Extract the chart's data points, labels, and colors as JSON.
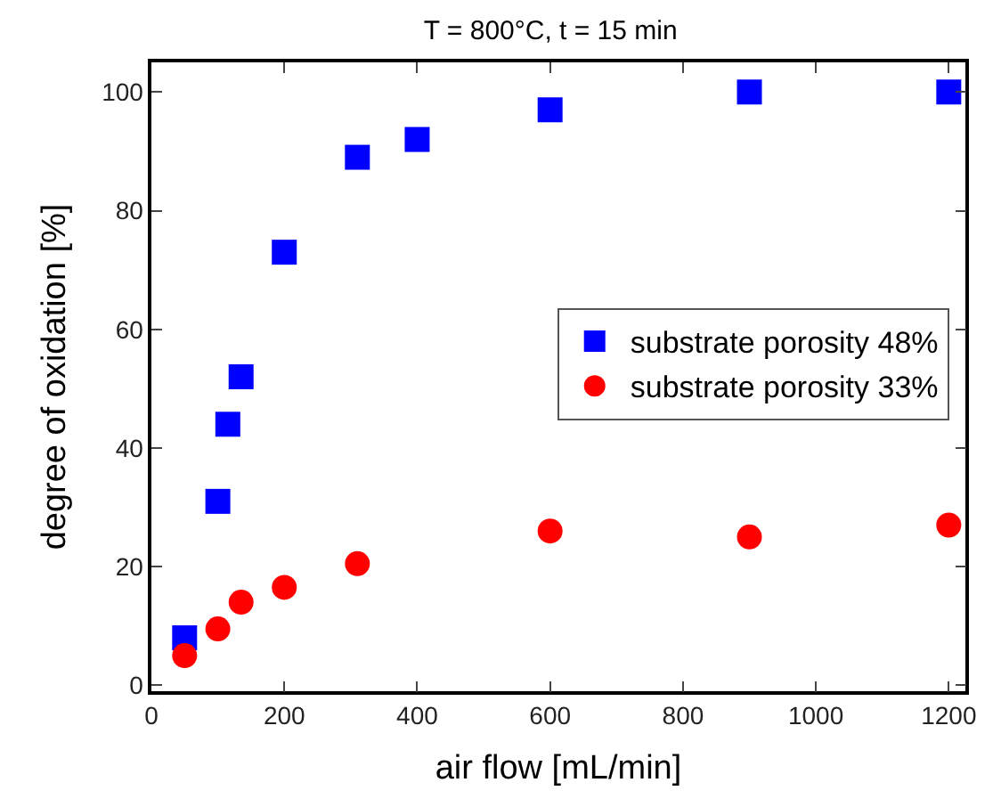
{
  "chart_data": {
    "type": "scatter",
    "title": "T = 800°C, t = 15 min",
    "xlabel": "air flow [mL/min]",
    "ylabel": "degree of oxidation [%]",
    "xlim": [
      0,
      1225
    ],
    "xticks": [
      0,
      200,
      400,
      600,
      800,
      1000,
      1200
    ],
    "ylim": [
      -1,
      105
    ],
    "yticks": [
      0,
      20,
      40,
      60,
      80,
      100
    ],
    "legend": "right",
    "series": [
      {
        "name": "substrate porosity 48%",
        "color": "#0000ff",
        "marker": "square",
        "x": [
          50,
          100,
          115,
          135,
          200,
          310,
          400,
          600,
          900,
          1200
        ],
        "values": [
          8,
          31,
          44,
          52,
          73,
          89,
          92,
          97,
          100,
          100
        ]
      },
      {
        "name": "substrate porosity 33%",
        "color": "#ff0000",
        "marker": "circle",
        "x": [
          50,
          100,
          135,
          200,
          310,
          600,
          900,
          1200
        ],
        "values": [
          5,
          9.5,
          14,
          16.5,
          20.5,
          26,
          25,
          27
        ]
      }
    ]
  }
}
